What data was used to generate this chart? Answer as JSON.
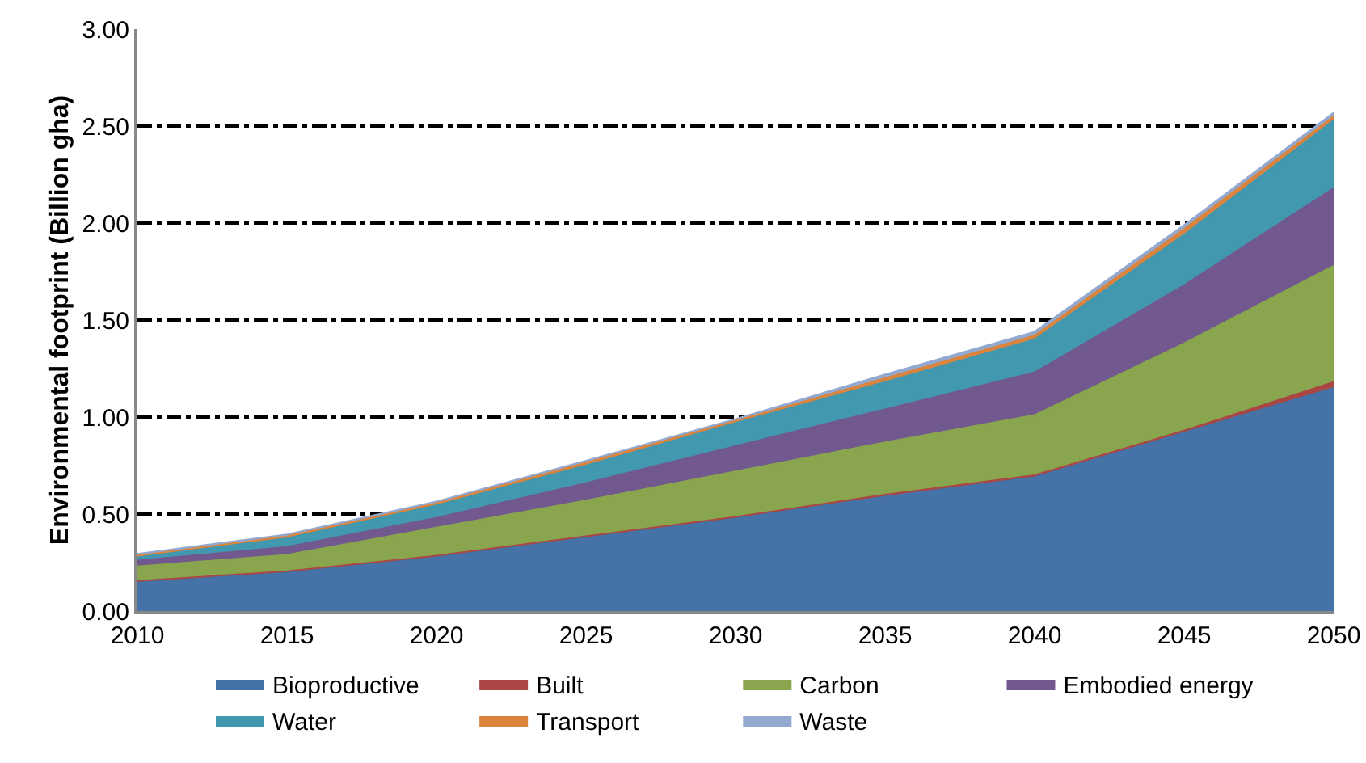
{
  "chart_data": {
    "type": "area",
    "stacked": true,
    "ylabel": "Environmental footprint (Billion gha)",
    "x": [
      2010,
      2015,
      2020,
      2025,
      2030,
      2035,
      2040,
      2045,
      2050
    ],
    "xlim": [
      2010,
      2050
    ],
    "xticks": [
      2010,
      2015,
      2020,
      2025,
      2030,
      2035,
      2040,
      2045,
      2050
    ],
    "ylim": [
      0,
      3
    ],
    "yticks": [
      {
        "value": 0,
        "label": "0.00"
      },
      {
        "value": 0.5,
        "label": "0.50"
      },
      {
        "value": 1,
        "label": "1.00"
      },
      {
        "value": 1.5,
        "label": "1.50"
      },
      {
        "value": 2,
        "label": "2.00"
      },
      {
        "value": 2.5,
        "label": "2.50"
      },
      {
        "value": 3,
        "label": "3.00"
      }
    ],
    "grid": "y",
    "legend": "bottom",
    "series": [
      {
        "name": "Bioproductive",
        "color": "#4572a7",
        "values": [
          0.15,
          0.2,
          0.28,
          0.38,
          0.48,
          0.59,
          0.69,
          0.92,
          1.15
        ]
      },
      {
        "name": "Built",
        "color": "#aa4643",
        "values": [
          0.005,
          0.005,
          0.005,
          0.005,
          0.005,
          0.01,
          0.01,
          0.01,
          0.03
        ]
      },
      {
        "name": "Carbon",
        "color": "#89a54e",
        "values": [
          0.075,
          0.085,
          0.145,
          0.185,
          0.235,
          0.27,
          0.31,
          0.45,
          0.6
        ]
      },
      {
        "name": "Embodied energy",
        "color": "#71588f",
        "values": [
          0.03,
          0.04,
          0.05,
          0.09,
          0.13,
          0.17,
          0.22,
          0.3,
          0.4
        ]
      },
      {
        "name": "Water",
        "color": "#4198af",
        "values": [
          0.02,
          0.045,
          0.065,
          0.09,
          0.12,
          0.14,
          0.17,
          0.26,
          0.35
        ]
      },
      {
        "name": "Transport",
        "color": "#db843d",
        "values": [
          0.005,
          0.01,
          0.01,
          0.015,
          0.01,
          0.02,
          0.02,
          0.03,
          0.02
        ]
      },
      {
        "name": "Waste",
        "color": "#93a9cf",
        "values": [
          0.01,
          0.01,
          0.01,
          0.01,
          0.01,
          0.02,
          0.02,
          0.02,
          0.02
        ]
      }
    ]
  }
}
